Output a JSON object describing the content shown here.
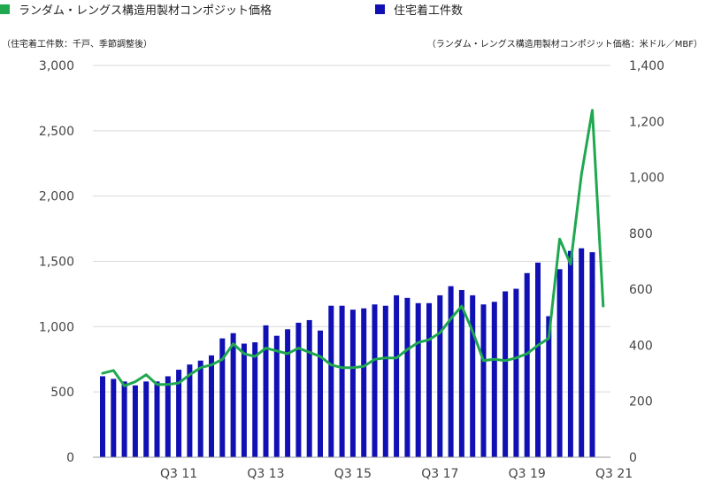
{
  "legend": {
    "price_label": "ランダム・レングス構造用製材コンポジット価格",
    "starts_label": "住宅着工件数"
  },
  "colors": {
    "price": "#1fa84f",
    "starts": "#1010b4",
    "grid": "#d9d9d9"
  },
  "chart_data": {
    "type": "bar",
    "left_axis_title": "（住宅着工件数：千戸、季節調整後）",
    "right_axis_title": "（ランダム・レングス構造用製材コンポジット価格：米ドル／MBF）",
    "left_ylim": [
      0,
      3000
    ],
    "left_ticks": [
      "0",
      "500",
      "1,000",
      "1,500",
      "2,000",
      "2,500",
      "3,000"
    ],
    "right_ylim": [
      0,
      1400
    ],
    "right_ticks": [
      "0",
      "200",
      "400",
      "600",
      "800",
      "1,000",
      "1,200",
      "1,400"
    ],
    "x_tick_labels": [
      {
        "index": 7,
        "label": "Q3 11"
      },
      {
        "index": 15,
        "label": "Q3 13"
      },
      {
        "index": 23,
        "label": "Q3 15"
      },
      {
        "index": 31,
        "label": "Q3 17"
      },
      {
        "index": 39,
        "label": "Q3 19"
      },
      {
        "index": 47,
        "label": "Q3 21"
      }
    ],
    "series": [
      {
        "name": "住宅着工件数",
        "type": "bar",
        "axis": "left",
        "values": [
          620,
          600,
          580,
          550,
          580,
          580,
          620,
          670,
          710,
          740,
          780,
          910,
          950,
          870,
          880,
          1010,
          930,
          980,
          1030,
          1050,
          970,
          1160,
          1160,
          1130,
          1140,
          1170,
          1160,
          1240,
          1220,
          1180,
          1180,
          1240,
          1310,
          1280,
          1240,
          1170,
          1190,
          1270,
          1290,
          1410,
          1490,
          1080,
          1440,
          1580,
          1600,
          1570
        ]
      },
      {
        "name": "ランダム・レングス構造用製材コンポジット価格",
        "type": "line",
        "axis": "right",
        "values": [
          300,
          310,
          255,
          270,
          295,
          260,
          260,
          265,
          295,
          320,
          330,
          350,
          405,
          370,
          360,
          390,
          380,
          370,
          390,
          375,
          360,
          330,
          320,
          320,
          325,
          350,
          355,
          355,
          385,
          410,
          420,
          445,
          495,
          540,
          450,
          345,
          350,
          345,
          355,
          370,
          400,
          425,
          780,
          690,
          1010,
          1240,
          540
        ]
      }
    ]
  }
}
